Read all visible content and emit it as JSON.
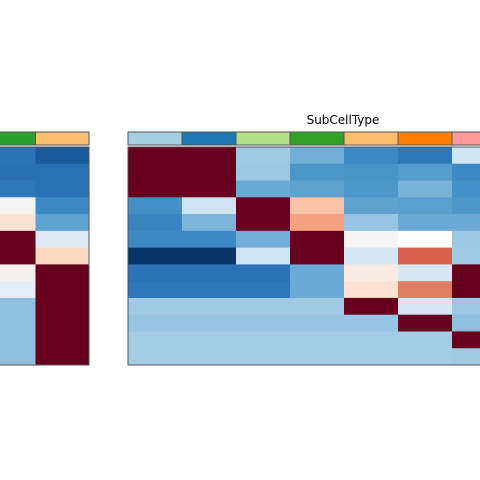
{
  "chart_data": {
    "type": "heatmap",
    "title": "",
    "column_annotation_label": "SubCellType",
    "left_panel": {
      "annotation_colors": [
        "#2ca02c",
        "#fdbf6f"
      ],
      "rows": [
        [
          "#2b73b6",
          "#1c5a9e"
        ],
        [
          "#2b6fb3",
          "#2a70b4"
        ],
        [
          "#2e77b8",
          "#2a70b4"
        ],
        [
          "#f3f3f3",
          "#3d89c4"
        ],
        [
          "#fbe3d4",
          "#5fa2d0"
        ],
        [
          "#67001f",
          "#deebf7"
        ],
        [
          "#67001f",
          "#fcd7c0"
        ],
        [
          "#f2f1ef",
          "#67001f"
        ],
        [
          "#e4eef6",
          "#67001f"
        ],
        [
          "#8fc0de",
          "#67001f"
        ],
        [
          "#8fc0de",
          "#67001f"
        ],
        [
          "#8fc0de",
          "#67001f"
        ],
        [
          "#8fc0de",
          "#67001f"
        ]
      ]
    },
    "right_panel": {
      "annotation_colors": [
        "#a6cee3",
        "#1f78b4",
        "#b2df8a",
        "#33a02c",
        "#fdbf6f",
        "#ff7f00",
        "#fb9a99"
      ],
      "rows": [
        [
          "#67001f",
          "#67001f",
          "#a0c9e4",
          "#73aed6",
          "#3d89c4",
          "#2e77b8",
          "#d1e4f2"
        ],
        [
          "#67001f",
          "#67001f",
          "#9dc7e3",
          "#4d96c9",
          "#4994c7",
          "#569dcd",
          "#3d89c4"
        ],
        [
          "#67001f",
          "#67001f",
          "#6baad4",
          "#5fa2d0",
          "#4d96c9",
          "#79b3d8",
          "#4590c6"
        ],
        [
          "#4590c6",
          "#cfe2f1",
          "#67001f",
          "#f9c3a8",
          "#5fa2d0",
          "#5aa0cf",
          "#4d96c9"
        ],
        [
          "#3a83c1",
          "#7db5da",
          "#67001f",
          "#f5a080",
          "#98c5e2",
          "#6baad4",
          "#6baad4"
        ],
        [
          "#3d89c4",
          "#3d89c4",
          "#73aed6",
          "#67001f",
          "#f5f5f5",
          "#fdfdfd",
          "#9dc7e3"
        ],
        [
          "#083468",
          "#083468",
          "#cfe2f1",
          "#67001f",
          "#d6e7f3",
          "#d6604d",
          "#a0c9e4"
        ],
        [
          "#2b73b6",
          "#2b73b6",
          "#2b73b6",
          "#6baad4",
          "#f9ebe3",
          "#d6e7f3",
          "#67001f"
        ],
        [
          "#2e77b8",
          "#2e77b8",
          "#2e77b8",
          "#6baad4",
          "#fee1d2",
          "#e07e64",
          "#67001f"
        ],
        [
          "#a0c9e4",
          "#a0c9e4",
          "#a0c9e4",
          "#a0c9e4",
          "#67001f",
          "#d6e7f3",
          "#9dc7e3"
        ],
        [
          "#98c5e2",
          "#98c5e2",
          "#98c5e2",
          "#98c5e2",
          "#98c5e2",
          "#67001f",
          "#8ebfdd"
        ],
        [
          "#a4cce5",
          "#a4cce5",
          "#a4cce5",
          "#a4cce5",
          "#a4cce5",
          "#a4cce5",
          "#67001f"
        ],
        [
          "#a4cce5",
          "#a4cce5",
          "#a4cce5",
          "#a4cce5",
          "#a4cce5",
          "#a4cce5",
          "#a0c9e4"
        ]
      ]
    },
    "xlabel": "",
    "ylabel": "",
    "legend": "none"
  }
}
